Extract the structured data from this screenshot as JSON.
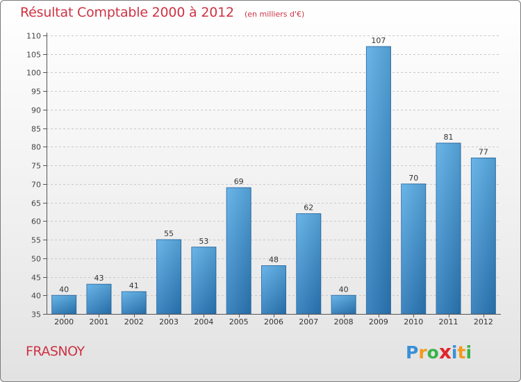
{
  "header": {
    "title": "Résultat Comptable 2000 à 2012",
    "subtitle": "(en milliers d'€)"
  },
  "footer": {
    "commune": "FRASNOY",
    "logo_letters": [
      "P",
      "r",
      "o",
      "x",
      "i",
      "t",
      "i"
    ],
    "logo_colors": [
      "#3a8fd8",
      "#f39a1c",
      "#3bb34a",
      "#e2252b",
      "#3a8fd8",
      "#f39a1c",
      "#3bb34a"
    ]
  },
  "chart_data": {
    "type": "bar",
    "categories": [
      "2000",
      "2001",
      "2002",
      "2003",
      "2004",
      "2005",
      "2006",
      "2007",
      "2008",
      "2009",
      "2010",
      "2011",
      "2012"
    ],
    "values": [
      40,
      43,
      41,
      55,
      53,
      69,
      48,
      62,
      40,
      107,
      70,
      81,
      77
    ],
    "ylim": [
      35,
      110
    ],
    "yticks": [
      35,
      40,
      45,
      50,
      55,
      60,
      65,
      70,
      75,
      80,
      85,
      90,
      95,
      100,
      105,
      110
    ],
    "grid": true,
    "bar_color_top": "#5aade6",
    "bar_color_bottom": "#2a78b8"
  }
}
